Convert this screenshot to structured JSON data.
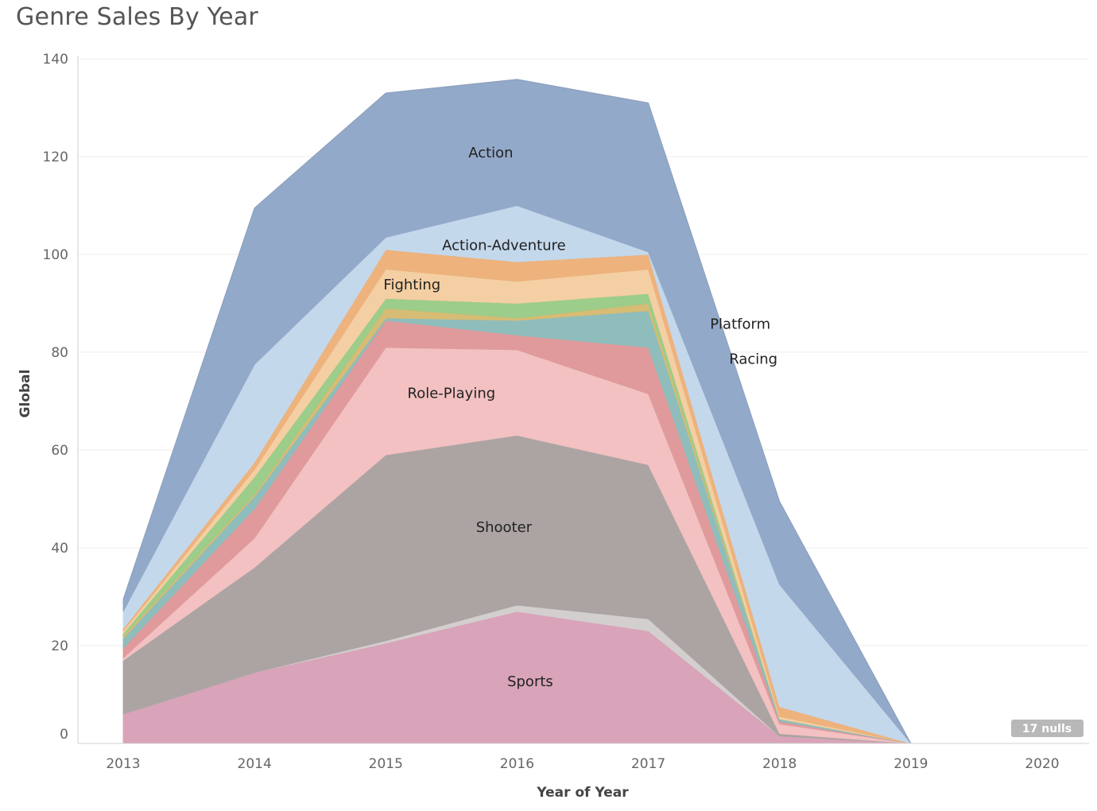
{
  "title": "Genre Sales By Year",
  "chart_data": {
    "type": "area",
    "stacked": true,
    "xlabel": "Year of Year",
    "ylabel": "Global",
    "x": [
      2013,
      2014,
      2015,
      2016,
      2017,
      2018,
      2019,
      2020
    ],
    "x_ticks": [
      "2013",
      "2014",
      "2015",
      "2016",
      "2017",
      "2018",
      "2019",
      "2020"
    ],
    "ylim": [
      0,
      140
    ],
    "y_ticks": [
      "0",
      "20",
      "40",
      "60",
      "80",
      "100",
      "120",
      "140"
    ],
    "grid": true,
    "legend": "none (labels inside areas)",
    "nulls_indicator": "17 nulls",
    "series": [
      {
        "name": "Sports",
        "color": "#d9a3b9",
        "values": [
          6,
          14.5,
          20.5,
          27,
          23,
          1.5,
          0,
          0
        ],
        "label_at": [
          2016.1,
          12.7
        ]
      },
      {
        "name": "",
        "color": "#d4cfcf",
        "values": [
          0,
          0,
          0.5,
          1.3,
          2.5,
          0,
          0,
          0
        ]
      },
      {
        "name": "Shooter",
        "color": "#aba4a3",
        "values": [
          11,
          21.5,
          38,
          34.7,
          31.5,
          0.5,
          0,
          0
        ],
        "label_at": [
          2015.9,
          44.2
        ]
      },
      {
        "name": "Role-Playing",
        "color": "#f3c1c2",
        "values": [
          0.5,
          6,
          22,
          17.5,
          14.5,
          2,
          0,
          0
        ],
        "label_at": [
          2015.5,
          71.6
        ]
      },
      {
        "name": "Racing",
        "color": "#e09a9b",
        "values": [
          2,
          6,
          5.5,
          3,
          9.5,
          0.5,
          0,
          0
        ],
        "label_at": [
          2017.8,
          78.6
        ]
      },
      {
        "name": "Platform",
        "color": "#8fbdbc",
        "values": [
          2,
          2.5,
          0.5,
          3,
          7.5,
          0.5,
          0,
          0
        ],
        "label_at": [
          2017.7,
          85.8
        ]
      },
      {
        "name": "",
        "color": "#d6bc74",
        "values": [
          0.5,
          0.5,
          2,
          0.5,
          1.5,
          0,
          0,
          0
        ]
      },
      {
        "name": "",
        "color": "#9ccd8a",
        "values": [
          0.5,
          3.5,
          2,
          3,
          2,
          0,
          0,
          0
        ]
      },
      {
        "name": "Fighting",
        "color": "#f4cfa3",
        "values": [
          0.5,
          1.5,
          6,
          4.5,
          5,
          0.5,
          0,
          0
        ],
        "label_at": [
          2015.2,
          93.8
        ]
      },
      {
        "name": "",
        "color": "#eeb27c",
        "values": [
          0.5,
          1.5,
          4,
          4,
          3,
          2,
          0,
          0
        ]
      },
      {
        "name": "Action-Adventure",
        "color": "#c4d8ec",
        "values": [
          3.5,
          20,
          2.5,
          11.5,
          0.5,
          25,
          0,
          0
        ],
        "label_at": [
          2015.9,
          101.9
        ]
      },
      {
        "name": "Action",
        "color": "#93a9c9",
        "values": [
          2.5,
          32,
          29.5,
          25.8,
          30.5,
          17,
          0,
          0
        ],
        "label_at": [
          2015.8,
          120.8
        ]
      }
    ]
  },
  "colors": {
    "grid": "#eeeeee",
    "axis": "#d0d0d0",
    "nulls_badge": "#b8b8b8"
  }
}
